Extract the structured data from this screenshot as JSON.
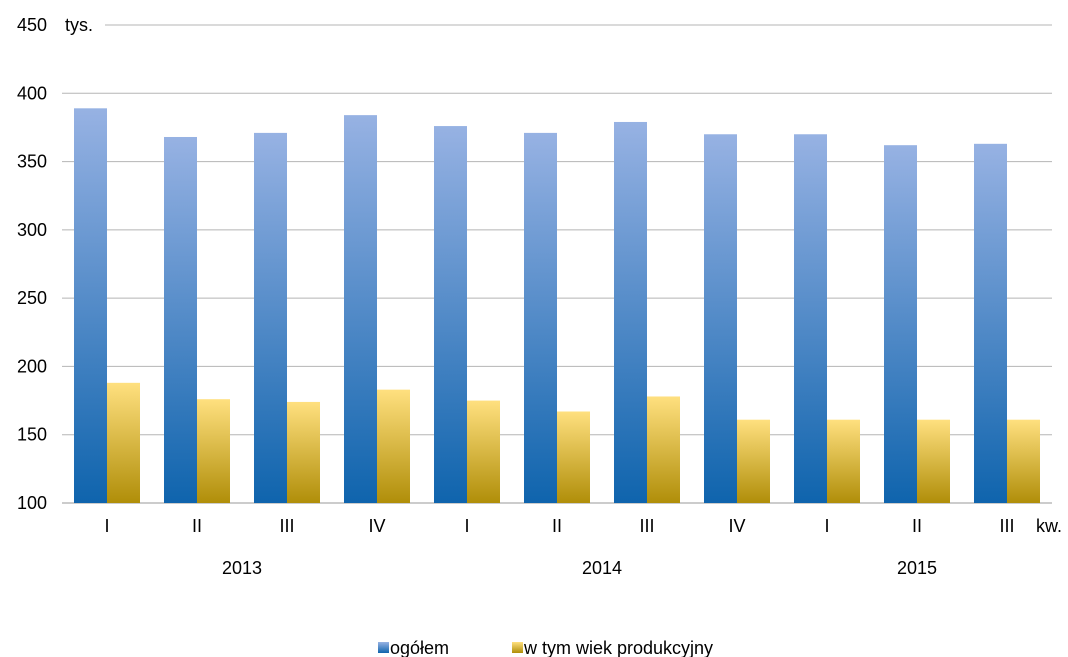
{
  "chart_data": {
    "type": "bar",
    "unit_label": "tys.",
    "x_unit_label": "kw.",
    "categories": [
      "I",
      "II",
      "III",
      "IV",
      "I",
      "II",
      "III",
      "IV",
      "I",
      "II",
      "III"
    ],
    "year_groups": [
      {
        "label": "2013",
        "count": 4
      },
      {
        "label": "2014",
        "count": 4
      },
      {
        "label": "2015",
        "count": 3
      }
    ],
    "series": [
      {
        "name": "ogółem",
        "values": [
          389,
          368,
          371,
          384,
          376,
          371,
          379,
          370,
          370,
          362,
          363
        ],
        "color_top": "#97b2e3",
        "color_bottom": "#0f64ad"
      },
      {
        "name": "w tym wiek produkcyjny",
        "values": [
          188,
          176,
          174,
          183,
          175,
          167,
          178,
          161,
          161,
          161,
          161
        ],
        "color_top": "#ffe07f",
        "color_bottom": "#b08e09"
      }
    ],
    "ylim": [
      100,
      450
    ],
    "yticks": [
      100,
      150,
      200,
      250,
      300,
      350,
      400,
      450
    ],
    "grid": true,
    "legend_position": "bottom"
  }
}
